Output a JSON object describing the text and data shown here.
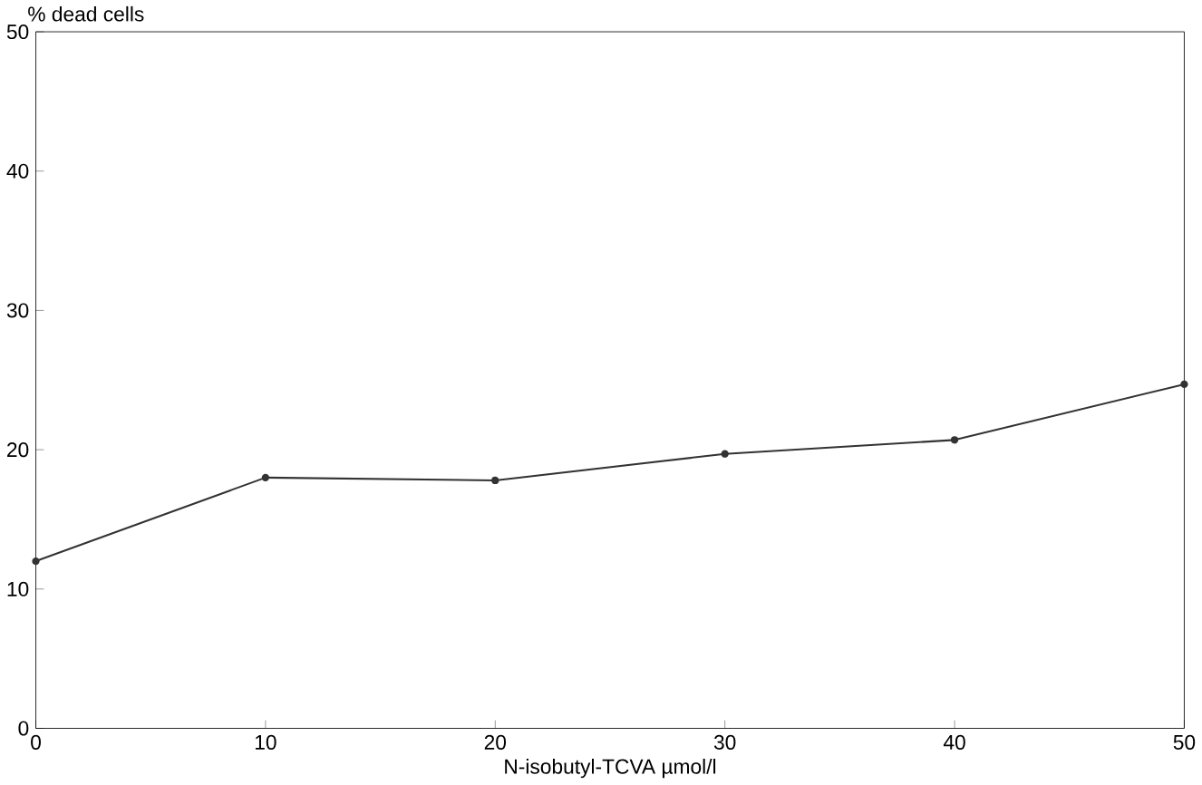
{
  "chart_data": {
    "type": "line",
    "xlabel": "N-isobutyl-TCVA µmol/l",
    "ylabel": "% dead cells",
    "x": [
      0,
      10,
      20,
      30,
      40,
      50
    ],
    "series": [
      {
        "color": "#333333",
        "values": [
          12,
          18,
          17.8,
          19.7,
          20.7,
          24.7
        ]
      }
    ],
    "xlim": [
      0,
      50
    ],
    "ylim": [
      0,
      50
    ],
    "xticks": [
      0,
      10,
      20,
      30,
      40,
      50
    ],
    "yticks": [
      0,
      10,
      20,
      30,
      40,
      50
    ],
    "marker": "circle",
    "line_style": "solid"
  }
}
